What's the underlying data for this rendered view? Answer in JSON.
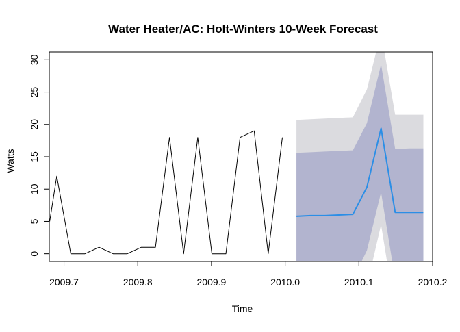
{
  "chart_data": {
    "type": "line",
    "title": "Water Heater/AC: Holt-Winters 10-Week Forecast",
    "xlabel": "Time",
    "ylabel": "Watts",
    "xlim": [
      2009.68,
      2010.2
    ],
    "ylim": [
      -1.2,
      31.2
    ],
    "x_ticks": [
      2009.7,
      2009.8,
      2009.9,
      2010.0,
      2010.1,
      2010.2
    ],
    "x_tick_labels": [
      "2009.7",
      "2009.8",
      "2009.9",
      "2010.0",
      "2010.1",
      "2010.2"
    ],
    "y_ticks": [
      0,
      5,
      10,
      15,
      20,
      25,
      30
    ],
    "y_tick_labels": [
      "0",
      "5",
      "10",
      "15",
      "20",
      "25",
      "30"
    ],
    "grid": false,
    "legend": "none",
    "series": [
      {
        "role": "observed",
        "color": "#000000",
        "x": [
          2009.6806,
          2009.6901,
          2009.7092,
          2009.7283,
          2009.7475,
          2009.7666,
          2009.7857,
          2009.8049,
          2009.824,
          2009.8431,
          2009.8622,
          2009.8814,
          2009.9005,
          2009.9196,
          2009.9388,
          2009.9579,
          2009.977,
          2009.9962
        ],
        "y": [
          5,
          12,
          0,
          0,
          1,
          0,
          0,
          1,
          1,
          18,
          0,
          18,
          0,
          0,
          18,
          19,
          0,
          18
        ]
      },
      {
        "role": "forecast",
        "color": "#2b8ee6",
        "x": [
          2010.0153,
          2010.0344,
          2010.0536,
          2010.0727,
          2010.0918,
          2010.1109,
          2010.1301,
          2010.1492,
          2010.1683,
          2010.1875
        ],
        "y": [
          5.8,
          5.9,
          5.9,
          6.0,
          6.1,
          10.3,
          19.4,
          6.4,
          6.4,
          6.4
        ]
      }
    ],
    "intervals": [
      {
        "level": 95,
        "color": "#dbdbdf",
        "x": [
          2010.0153,
          2010.0344,
          2010.0536,
          2010.0727,
          2010.0918,
          2010.1109,
          2010.1301,
          2010.1492,
          2010.1683,
          2010.1875
        ],
        "lower": [
          -9,
          -9,
          -9,
          -9,
          -9,
          -5,
          4.5,
          -9,
          -9,
          -9
        ],
        "upper": [
          20.7,
          20.8,
          20.9,
          21.0,
          21.1,
          25.4,
          34.3,
          21.5,
          21.5,
          21.5
        ]
      },
      {
        "level": 80,
        "color": "#b2b4cf",
        "x": [
          2010.0153,
          2010.0344,
          2010.0536,
          2010.0727,
          2010.0918,
          2010.1109,
          2010.1301,
          2010.1492,
          2010.1683,
          2010.1875
        ],
        "lower": [
          -4,
          -4,
          -4,
          -4,
          -4,
          0.5,
          9.5,
          -4,
          -4,
          -4
        ],
        "upper": [
          15.6,
          15.7,
          15.8,
          15.9,
          16.0,
          20.2,
          29.3,
          16.2,
          16.3,
          16.3
        ]
      }
    ]
  }
}
